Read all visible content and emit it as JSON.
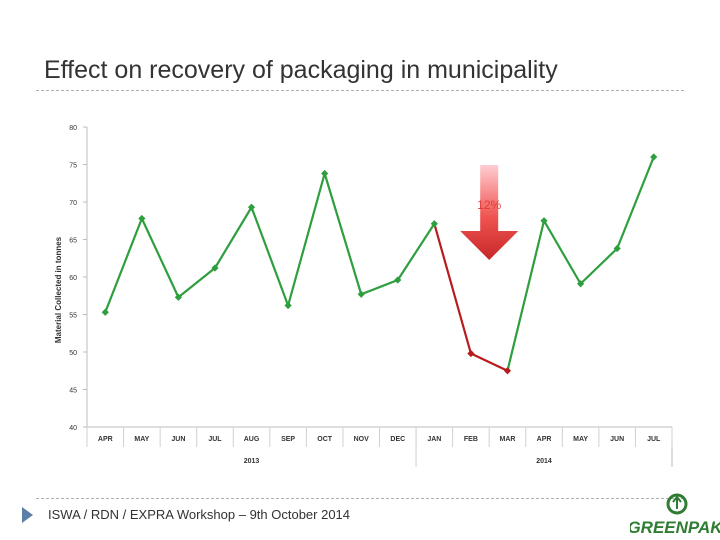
{
  "slide": {
    "title": "Effect on recovery of packaging in municipality",
    "footer": "ISWA / RDN / EXPRA Workshop – 9th October 2014"
  },
  "brand": {
    "name": "GreenPak",
    "logo_text": "GREENPAK",
    "logo_color": "#2e7d32"
  },
  "chart_data": {
    "type": "line",
    "ylabel": "Material Collected in tonnes",
    "ylim": [
      40,
      80
    ],
    "yticks": [
      40,
      45,
      50,
      55,
      60,
      65,
      70,
      75,
      80
    ],
    "grid": false,
    "categories": [
      "APR",
      "MAY",
      "JUN",
      "JUL",
      "AUG",
      "SEP",
      "OCT",
      "NOV",
      "DEC",
      "JAN",
      "FEB",
      "MAR",
      "APR",
      "MAY",
      "JUN",
      "JUL"
    ],
    "year_groups": [
      {
        "label": "2013",
        "start": 0,
        "end": 8
      },
      {
        "label": "2014",
        "start": 9,
        "end": 15
      }
    ],
    "values": [
      55.3,
      67.8,
      57.3,
      61.2,
      69.3,
      56.2,
      73.8,
      57.7,
      59.6,
      67.1,
      49.8,
      47.5,
      67.5,
      59.1,
      63.8,
      76.0
    ],
    "decline_segment": {
      "start": 9,
      "end": 11,
      "color": "#b71c1c"
    },
    "line_color": "#2e9e3e",
    "annotation": {
      "text": "12%",
      "color": "#e53935",
      "at_index": 10.5
    }
  }
}
